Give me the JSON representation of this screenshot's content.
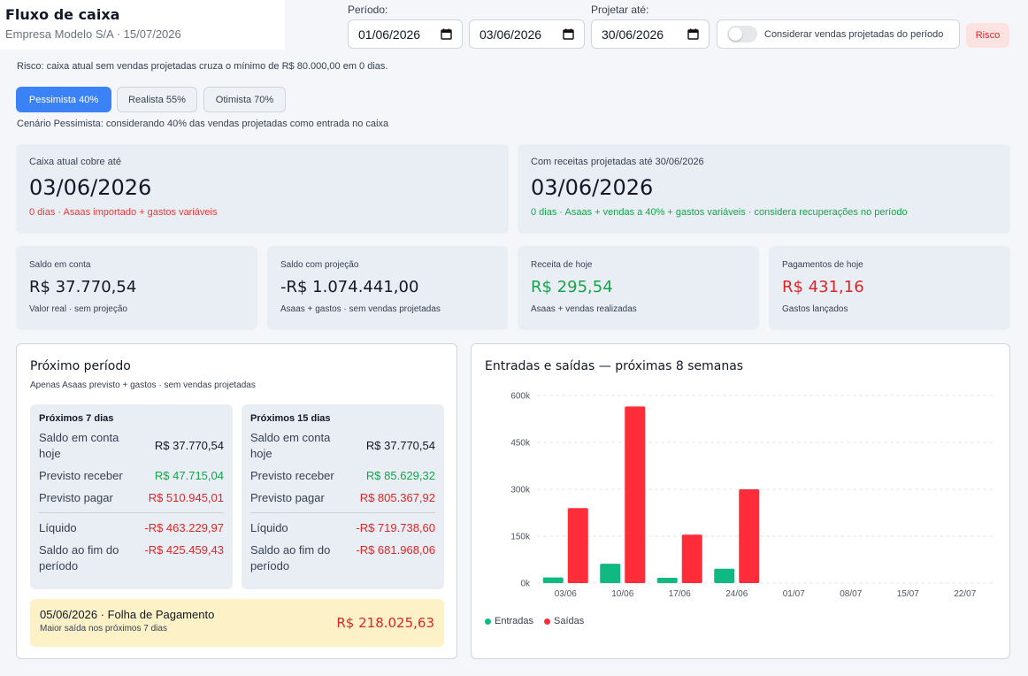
{
  "header": {
    "title": "Fluxo de caixa",
    "subtitle": "Empresa Modelo S/A · 15/07/2026"
  },
  "filters": {
    "periodo_label": "Período:",
    "start_date": "01/06/2026",
    "end_date": "03/06/2026",
    "projetar_label": "Projetar até:",
    "projetar_date": "30/06/2026",
    "toggle_label": "Considerar vendas projetadas do período",
    "toggle_on": false,
    "risk_badge": "Risco"
  },
  "risk_message": "Risco: caixa atual sem vendas projetadas cruza o mínimo de R$ 80.000,00 em 0 dias.",
  "scenarios": {
    "items": [
      {
        "label": "Pessimista 40%",
        "active": true
      },
      {
        "label": "Realista 55%",
        "active": false
      },
      {
        "label": "Otimista 70%",
        "active": false
      }
    ],
    "description": "Cenário Pessimista: considerando 40% das vendas projetadas como entrada no caixa"
  },
  "coverage": {
    "current": {
      "label": "Caixa atual cobre até",
      "date": "03/06/2026",
      "note": "0 dias · Asaas importado + gastos variáveis"
    },
    "projected": {
      "label": "Com receitas projetadas até 30/06/2026",
      "date": "03/06/2026",
      "note": "0 dias · Asaas + vendas a 40% + gastos variáveis · considera recuperações no período"
    }
  },
  "kpis": [
    {
      "label": "Saldo em conta",
      "value": "R$ 37.770,54",
      "note": "Valor real · sem projeção"
    },
    {
      "label": "Saldo com projeção",
      "value": "-R$ 1.074.441,00",
      "note": "Asaas + gastos · sem vendas projetadas"
    },
    {
      "label": "Receita de hoje",
      "value": "R$ 295,54",
      "note": "Asaas + vendas realizadas"
    },
    {
      "label": "Pagamentos de hoje",
      "value": "R$ 431,16",
      "note": "Gastos lançados"
    }
  ],
  "next_period": {
    "title": "Próximo período",
    "subtitle": "Apenas Asaas previsto + gastos · sem vendas projetadas",
    "cards": [
      {
        "title": "Próximos 7 dias",
        "saldo_label": "Saldo em conta hoje",
        "saldo": "R$ 37.770,54",
        "receber_label": "Previsto receber",
        "receber": "R$ 47.715,04",
        "pagar_label": "Previsto pagar",
        "pagar": "R$ 510.945,01",
        "liquido_label": "Líquido",
        "liquido": "-R$ 463.229,97",
        "fim_label": "Saldo ao fim do período",
        "fim": "-R$ 425.459,43"
      },
      {
        "title": "Próximos 15 dias",
        "saldo_label": "Saldo em conta hoje",
        "saldo": "R$ 37.770,54",
        "receber_label": "Previsto receber",
        "receber": "R$ 85.629,32",
        "pagar_label": "Previsto pagar",
        "pagar": "R$ 805.367,92",
        "liquido_label": "Líquido",
        "liquido": "-R$ 719.738,60",
        "fim_label": "Saldo ao fim do período",
        "fim": "-R$ 681.968,06"
      }
    ],
    "highlight": {
      "title": "05/06/2026 · Folha de Pagamento",
      "note": "Maior saída nos próximos 7 dias",
      "value": "R$ 218.025,63"
    }
  },
  "chart_panel_title": "Entradas e saídas — próximas 8 semanas",
  "chart_data": {
    "type": "bar",
    "categories": [
      "03/06",
      "10/06",
      "17/06",
      "24/06",
      "01/07",
      "08/07",
      "15/07",
      "22/07"
    ],
    "series": [
      {
        "name": "Entradas",
        "color": "#10b981",
        "values": [
          18000,
          62000,
          17000,
          46000,
          0,
          0,
          0,
          0
        ]
      },
      {
        "name": "Saídas",
        "color": "#ff2d3a",
        "values": [
          240000,
          565000,
          155000,
          300000,
          0,
          0,
          0,
          0
        ]
      }
    ],
    "yticks": [
      "0k",
      "150k",
      "300k",
      "450k",
      "600k"
    ],
    "ylim": [
      0,
      600000
    ],
    "grid": true,
    "legend": "bottom-left"
  }
}
